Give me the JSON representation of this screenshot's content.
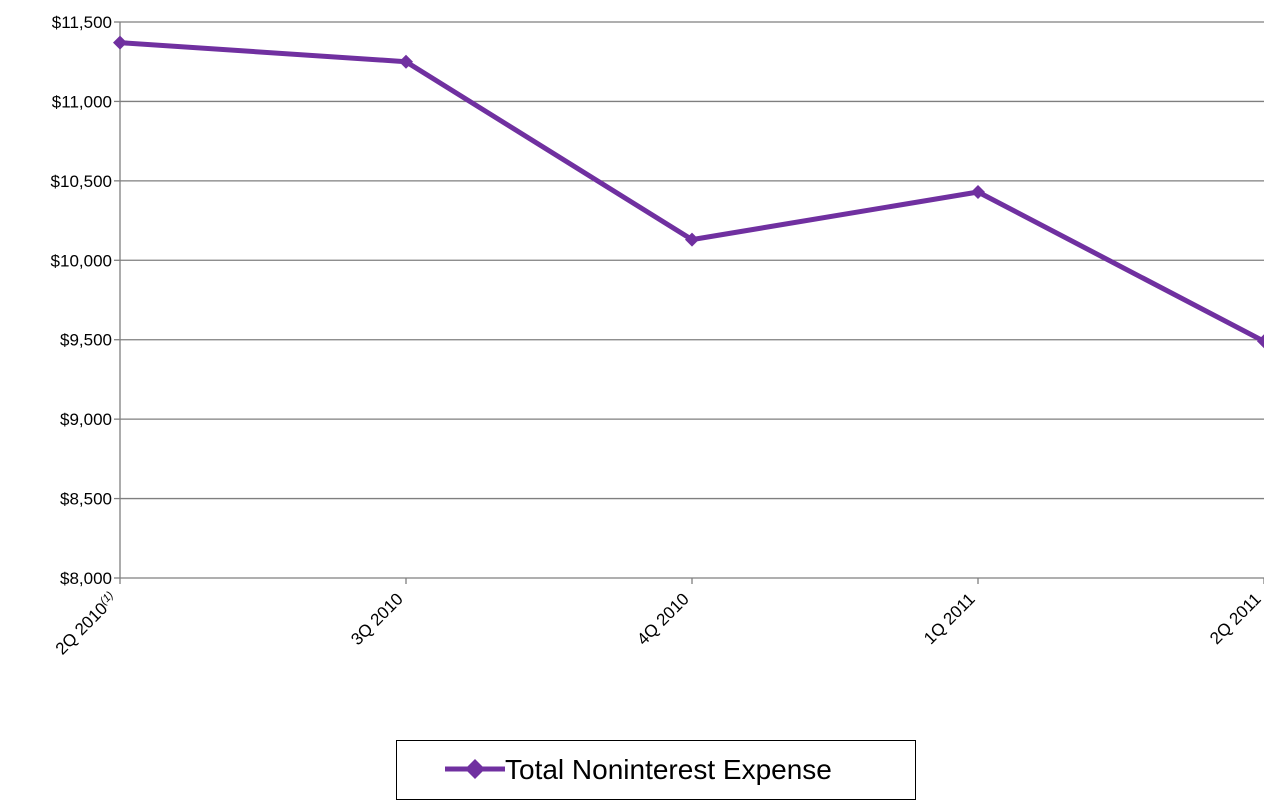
{
  "chart_data": {
    "type": "line",
    "categories": [
      "2Q 2010",
      "3Q 2010",
      "4Q 2010",
      "1Q 2011",
      "2Q 2011"
    ],
    "category_superscripts": [
      "(1)",
      "",
      "",
      "",
      ""
    ],
    "series": [
      {
        "name": "Total Noninterest Expense",
        "values": [
          11370,
          11250,
          10130,
          10430,
          9490
        ],
        "color": "#7030a0",
        "marker": "diamond"
      }
    ],
    "y_ticks": [
      "$8,000",
      "$8,500",
      "$9,000",
      "$9,500",
      "$10,000",
      "$10,500",
      "$11,000",
      "$11,500"
    ],
    "ylim": [
      8000,
      11500
    ],
    "ystep": 500,
    "grid": true,
    "legend": "bottom-center",
    "colors": {
      "series": "#7030a0",
      "grid": "#7f7f7f"
    }
  }
}
